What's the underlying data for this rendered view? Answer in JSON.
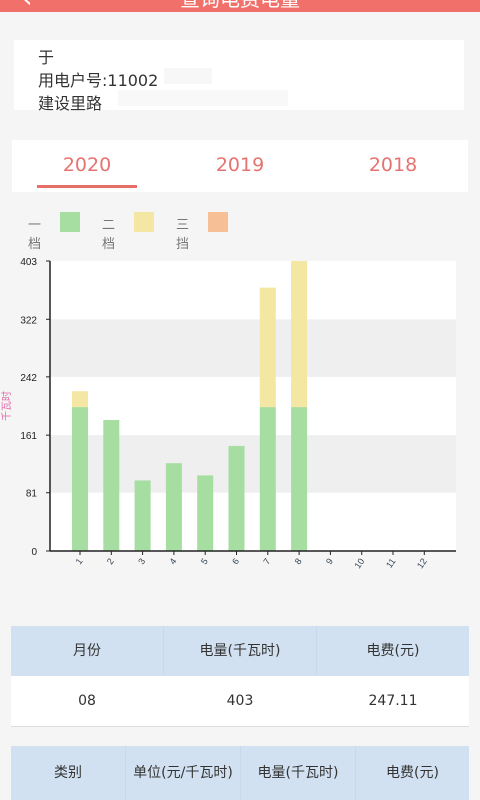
{
  "header": {
    "title": "查询电费电量",
    "back_icon": "‹"
  },
  "account": {
    "name": "于",
    "number_label": "用电户号:11002",
    "address": "建设里路"
  },
  "tabs": [
    {
      "label": "2020"
    },
    {
      "label": "2019"
    },
    {
      "label": "2018"
    }
  ],
  "selected_tab": 0,
  "legend": [
    {
      "label": "一档",
      "color": "#a5dea0"
    },
    {
      "label": "二档",
      "color": "#f4e6a3"
    },
    {
      "label": "三挡",
      "color": "#f7bf95"
    }
  ],
  "chart_data": {
    "type": "bar",
    "stacked": true,
    "ylabel": "千瓦时",
    "ylim": [
      0,
      403
    ],
    "yticks": [
      "0",
      "81",
      "161",
      "242",
      "322",
      "403"
    ],
    "categories": [
      "1",
      "2",
      "3",
      "4",
      "5",
      "6",
      "7",
      "8",
      "9",
      "10",
      "11",
      "12"
    ],
    "series": [
      {
        "name": "一档",
        "values": [
          200,
          182,
          98,
          122,
          105,
          146,
          200,
          200,
          0,
          0,
          0,
          0
        ]
      },
      {
        "name": "二档",
        "values": [
          22,
          0,
          0,
          0,
          0,
          0,
          166,
          203,
          0,
          0,
          0,
          0
        ]
      },
      {
        "name": "三挡",
        "values": [
          0,
          0,
          0,
          0,
          0,
          0,
          0,
          0,
          0,
          0,
          0,
          0
        ]
      }
    ],
    "grid": "alternating bands"
  },
  "summary_table": {
    "headers": [
      "月份",
      "电量(千瓦时)",
      "电费(元)"
    ],
    "row": [
      "08",
      "403",
      "247.11"
    ]
  },
  "detail_table": {
    "headers": [
      "类别",
      "单位(元/千瓦时)",
      "电量(千瓦时)",
      "电费(元)"
    ]
  }
}
